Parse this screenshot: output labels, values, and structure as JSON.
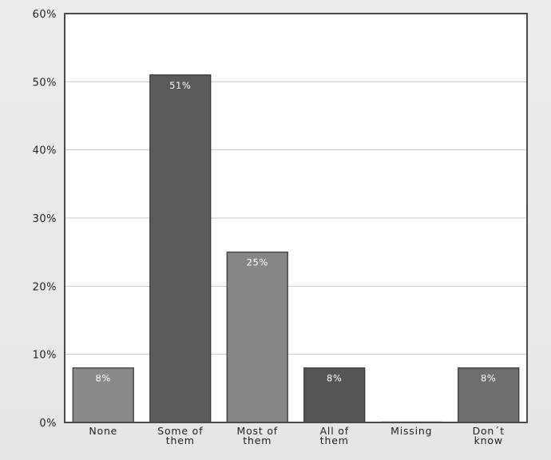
{
  "chart_data": {
    "type": "bar",
    "categories": [
      [
        "None"
      ],
      [
        "Some of",
        "them"
      ],
      [
        "Most of",
        "them"
      ],
      [
        "All of",
        "them"
      ],
      [
        "Missing"
      ],
      [
        "Don´t",
        "know"
      ]
    ],
    "values": [
      8,
      51,
      25,
      8,
      0,
      8
    ],
    "data_labels": [
      "8%",
      "51%",
      "25%",
      "8%",
      "",
      "8%"
    ],
    "bar_colors": [
      "#8a8a8a",
      "#5b5b5b",
      "#868686",
      "#555555",
      "#7a7a7a",
      "#6e6e6e"
    ],
    "ylim": [
      0,
      60
    ],
    "yticks": [
      0,
      10,
      20,
      30,
      40,
      50,
      60
    ],
    "ytick_labels": [
      "0%",
      "10%",
      "20%",
      "30%",
      "40%",
      "50%",
      "60%"
    ],
    "grid": true,
    "legend": "none",
    "title": "",
    "xlabel": "",
    "ylabel": ""
  }
}
